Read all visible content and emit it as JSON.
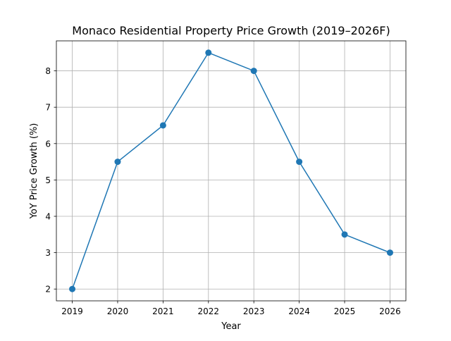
{
  "chart_data": {
    "type": "line",
    "title": "Monaco Residential Property Price Growth (2019–2026F)",
    "xlabel": "Year",
    "ylabel": "YoY Price Growth (%)",
    "x": [
      2019,
      2020,
      2021,
      2022,
      2023,
      2024,
      2025,
      2026
    ],
    "series": [
      {
        "values": [
          2,
          5.5,
          6.5,
          8.5,
          8,
          5.5,
          3.5,
          3
        ],
        "color": "#1f77b4",
        "marker": "circle"
      }
    ],
    "xticks": [
      "2019",
      "2020",
      "2021",
      "2022",
      "2023",
      "2024",
      "2025",
      "2026"
    ],
    "yticks": [
      "2",
      "3",
      "4",
      "5",
      "6",
      "7",
      "8"
    ],
    "xlim": [
      2018.65,
      2026.35
    ],
    "ylim": [
      1.675,
      8.825
    ],
    "grid": true,
    "grid_color": "#b0b0b0"
  }
}
